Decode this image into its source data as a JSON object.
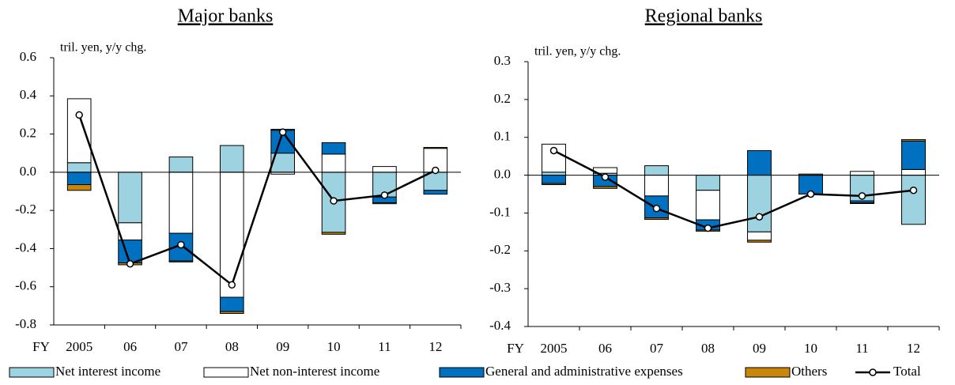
{
  "chart_data": [
    {
      "type": "bar",
      "title": "Major banks",
      "y_label": "tril. yen, y/y chg.",
      "x_label": "FY",
      "categories": [
        "2005",
        "06",
        "07",
        "08",
        "09",
        "10",
        "11",
        "12"
      ],
      "ylim": [
        -0.8,
        0.6
      ],
      "yticks": [
        -0.8,
        -0.6,
        -0.4,
        -0.2,
        {
          "value": 0,
          "label": "0.0"
        },
        0.2,
        0.4,
        0.6
      ],
      "series": [
        {
          "name": "Net interest income",
          "type": "bar",
          "color": "#9dd3e0",
          "values": [
            0.05,
            -0.265,
            0.08,
            0.14,
            0.1,
            -0.315,
            -0.13,
            -0.095
          ]
        },
        {
          "name": "Net non-interest income",
          "type": "bar",
          "color": "#ffffff",
          "values": [
            0.335,
            -0.09,
            -0.32,
            -0.655,
            -0.01,
            0.095,
            0.03,
            0.125
          ]
        },
        {
          "name": "General and administrative expenses",
          "type": "bar",
          "color": "#0070c0",
          "values": [
            -0.065,
            -0.12,
            -0.145,
            -0.075,
            0.12,
            0.06,
            -0.03,
            -0.02
          ]
        },
        {
          "name": "Others",
          "type": "bar",
          "color": "#c8860a",
          "values": [
            -0.03,
            -0.01,
            -0.005,
            -0.01,
            0.005,
            -0.01,
            -0.005,
            0.005
          ]
        },
        {
          "name": "Total",
          "type": "line",
          "color": "#000000",
          "values": [
            0.3,
            -0.48,
            -0.38,
            -0.59,
            0.21,
            -0.15,
            -0.12,
            0.01
          ]
        }
      ]
    },
    {
      "type": "bar",
      "title": "Regional banks",
      "y_label": "tril. yen, y/y chg.",
      "x_label": "FY",
      "categories": [
        "2005",
        "06",
        "07",
        "08",
        "09",
        "10",
        "11",
        "12"
      ],
      "ylim": [
        -0.4,
        0.3
      ],
      "yticks": [
        -0.4,
        -0.3,
        -0.2,
        -0.1,
        {
          "value": 0,
          "label": "0.0"
        },
        0.1,
        0.2,
        0.3
      ],
      "series": [
        {
          "name": "Net interest income",
          "type": "bar",
          "color": "#9dd3e0",
          "values": [
            0.008,
            0.005,
            0.025,
            -0.04,
            -0.15,
            0,
            -0.068,
            -0.13
          ]
        },
        {
          "name": "Net non-interest income",
          "type": "bar",
          "color": "#ffffff",
          "values": [
            0.074,
            0.015,
            -0.055,
            -0.078,
            -0.022,
            0,
            0.01,
            0.015
          ]
        },
        {
          "name": "General and administrative expenses",
          "type": "bar",
          "color": "#0070c0",
          "values": [
            -0.022,
            -0.03,
            -0.058,
            -0.027,
            0.065,
            -0.05,
            -0.005,
            0.075
          ]
        },
        {
          "name": "Others",
          "type": "bar",
          "color": "#c8860a",
          "values": [
            -0.003,
            -0.005,
            -0.004,
            -0.003,
            -0.005,
            0.003,
            -0.002,
            0.004
          ]
        },
        {
          "name": "Total",
          "type": "line",
          "color": "#000000",
          "values": [
            0.065,
            -0.005,
            -0.088,
            -0.14,
            -0.11,
            -0.05,
            -0.055,
            -0.04
          ]
        }
      ]
    }
  ]
}
